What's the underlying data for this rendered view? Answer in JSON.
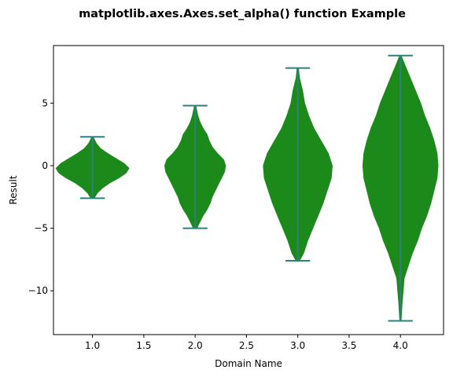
{
  "chart_data": {
    "type": "violin",
    "title": "matplotlib.axes.Axes.set_alpha() function Example",
    "xlabel": "Domain Name",
    "ylabel": "Result",
    "xlim": [
      0.62,
      4.42
    ],
    "ylim": [
      -13.5,
      9.6
    ],
    "xticks": [
      1.0,
      1.5,
      2.0,
      2.5,
      3.0,
      3.5,
      4.0
    ],
    "xtick_labels": [
      "1.0",
      "1.5",
      "2.0",
      "2.5",
      "3.0",
      "3.5",
      "4.0"
    ],
    "yticks": [
      -10,
      -5,
      0,
      5
    ],
    "ytick_labels": [
      "−10",
      "−5",
      "0",
      "5"
    ],
    "grid": false,
    "colors": {
      "body": "#1b8a1b",
      "lines": "#2f7f7f"
    },
    "violins": [
      {
        "position": 1,
        "min": -2.6,
        "max": 2.3,
        "profile": [
          [
            -2.6,
            0.02
          ],
          [
            -2.2,
            0.05
          ],
          [
            -1.8,
            0.1
          ],
          [
            -1.4,
            0.17
          ],
          [
            -1.0,
            0.26
          ],
          [
            -0.6,
            0.33
          ],
          [
            -0.2,
            0.36
          ],
          [
            0.2,
            0.31
          ],
          [
            0.6,
            0.23
          ],
          [
            1.0,
            0.15
          ],
          [
            1.4,
            0.08
          ],
          [
            1.8,
            0.04
          ],
          [
            2.3,
            0.01
          ]
        ]
      },
      {
        "position": 2,
        "min": -5.0,
        "max": 4.8,
        "profile": [
          [
            -5.0,
            0.02
          ],
          [
            -4.5,
            0.05
          ],
          [
            -4.0,
            0.08
          ],
          [
            -3.5,
            0.12
          ],
          [
            -3.0,
            0.15
          ],
          [
            -2.5,
            0.17
          ],
          [
            -2.0,
            0.2
          ],
          [
            -1.5,
            0.23
          ],
          [
            -1.0,
            0.26
          ],
          [
            -0.5,
            0.29
          ],
          [
            0.0,
            0.3
          ],
          [
            0.5,
            0.28
          ],
          [
            1.0,
            0.22
          ],
          [
            1.5,
            0.17
          ],
          [
            2.0,
            0.14
          ],
          [
            2.5,
            0.12
          ],
          [
            3.0,
            0.08
          ],
          [
            3.5,
            0.05
          ],
          [
            4.0,
            0.03
          ],
          [
            4.8,
            0.01
          ]
        ]
      },
      {
        "position": 3,
        "min": -7.6,
        "max": 7.8,
        "profile": [
          [
            -7.6,
            0.02
          ],
          [
            -7.0,
            0.06
          ],
          [
            -6.0,
            0.1
          ],
          [
            -5.0,
            0.15
          ],
          [
            -4.0,
            0.2
          ],
          [
            -3.0,
            0.25
          ],
          [
            -2.0,
            0.29
          ],
          [
            -1.0,
            0.33
          ],
          [
            0.0,
            0.34
          ],
          [
            1.0,
            0.3
          ],
          [
            2.0,
            0.23
          ],
          [
            3.0,
            0.16
          ],
          [
            4.0,
            0.11
          ],
          [
            5.0,
            0.07
          ],
          [
            6.0,
            0.05
          ],
          [
            7.0,
            0.02
          ],
          [
            7.8,
            0.01
          ]
        ]
      },
      {
        "position": 4,
        "min": -12.4,
        "max": 8.8,
        "profile": [
          [
            -12.4,
            0.01
          ],
          [
            -11.0,
            0.02
          ],
          [
            -10.0,
            0.03
          ],
          [
            -9.0,
            0.04
          ],
          [
            -8.0,
            0.08
          ],
          [
            -7.0,
            0.12
          ],
          [
            -6.0,
            0.17
          ],
          [
            -5.0,
            0.21
          ],
          [
            -4.0,
            0.26
          ],
          [
            -3.0,
            0.3
          ],
          [
            -2.0,
            0.33
          ],
          [
            -1.0,
            0.36
          ],
          [
            0.0,
            0.37
          ],
          [
            1.0,
            0.36
          ],
          [
            2.0,
            0.33
          ],
          [
            3.0,
            0.29
          ],
          [
            4.0,
            0.24
          ],
          [
            5.0,
            0.2
          ],
          [
            6.0,
            0.15
          ],
          [
            7.0,
            0.1
          ],
          [
            8.0,
            0.05
          ],
          [
            8.8,
            0.01
          ]
        ]
      }
    ]
  }
}
